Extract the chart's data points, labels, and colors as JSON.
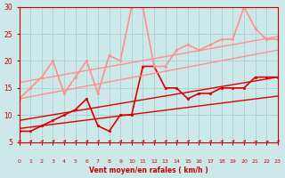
{
  "background_color": "#cce8e8",
  "grid_color": "#aad0d0",
  "x_min": 0,
  "x_max": 23,
  "y_min": 5,
  "y_max": 30,
  "yticks": [
    5,
    10,
    15,
    20,
    25,
    30
  ],
  "xticks": [
    0,
    1,
    2,
    3,
    4,
    5,
    6,
    7,
    8,
    9,
    10,
    11,
    12,
    13,
    14,
    15,
    16,
    17,
    18,
    19,
    20,
    21,
    22,
    23
  ],
  "xlabel": "Vent moyen/en rafales ( km/h )",
  "xlabel_color": "#cc0000",
  "tick_color": "#cc0000",
  "series": [
    {
      "x": [
        0,
        1,
        2,
        3,
        4,
        5,
        6,
        7,
        8,
        9,
        10,
        11,
        12,
        13,
        14,
        15,
        16,
        17,
        18,
        19,
        20,
        21,
        22,
        23
      ],
      "y": [
        7,
        7,
        8,
        9,
        10,
        11,
        13,
        8,
        7,
        10,
        10,
        19,
        19,
        15,
        15,
        13,
        14,
        14,
        15,
        15,
        15,
        17,
        17,
        17
      ],
      "color": "#dd0000",
      "linewidth": 1.2,
      "marker": "s",
      "markersize": 2,
      "alpha": 1.0
    },
    {
      "x": [
        0,
        23
      ],
      "y": [
        7.5,
        13.5
      ],
      "color": "#dd0000",
      "linewidth": 1.0,
      "marker": null,
      "markersize": 0,
      "alpha": 1.0
    },
    {
      "x": [
        0,
        23
      ],
      "y": [
        9,
        17
      ],
      "color": "#dd0000",
      "linewidth": 1.0,
      "marker": null,
      "markersize": 0,
      "alpha": 1.0
    },
    {
      "x": [
        0,
        1,
        2,
        3,
        4,
        5,
        6,
        7,
        8,
        9,
        10,
        11,
        12,
        13,
        14,
        15,
        16,
        17,
        18,
        19,
        20,
        21,
        22,
        23
      ],
      "y": [
        13,
        15,
        17,
        20,
        14,
        17,
        20,
        14,
        21,
        20,
        30,
        30,
        19,
        19,
        22,
        23,
        22,
        23,
        24,
        24,
        30,
        26,
        24,
        24
      ],
      "color": "#ff9090",
      "linewidth": 1.2,
      "marker": "s",
      "markersize": 2,
      "alpha": 1.0
    },
    {
      "x": [
        0,
        23
      ],
      "y": [
        13,
        22
      ],
      "color": "#ff9090",
      "linewidth": 1.0,
      "marker": null,
      "markersize": 0,
      "alpha": 1.0
    },
    {
      "x": [
        0,
        23
      ],
      "y": [
        16,
        24.5
      ],
      "color": "#ff9090",
      "linewidth": 1.0,
      "marker": null,
      "markersize": 0,
      "alpha": 1.0
    }
  ],
  "wind_arrows_x": [
    0,
    1,
    2,
    3,
    4,
    5,
    6,
    7,
    8,
    9,
    10,
    11,
    12,
    13,
    14,
    15,
    16,
    17,
    18,
    19,
    20,
    21,
    22,
    23
  ],
  "wind_arrow_color": "#cc0000",
  "wind_arrow_angles": [
    45,
    45,
    45,
    45,
    45,
    45,
    45,
    45,
    45,
    45,
    45,
    45,
    45,
    45,
    45,
    45,
    45,
    45,
    45,
    45,
    45,
    30,
    20,
    45
  ]
}
